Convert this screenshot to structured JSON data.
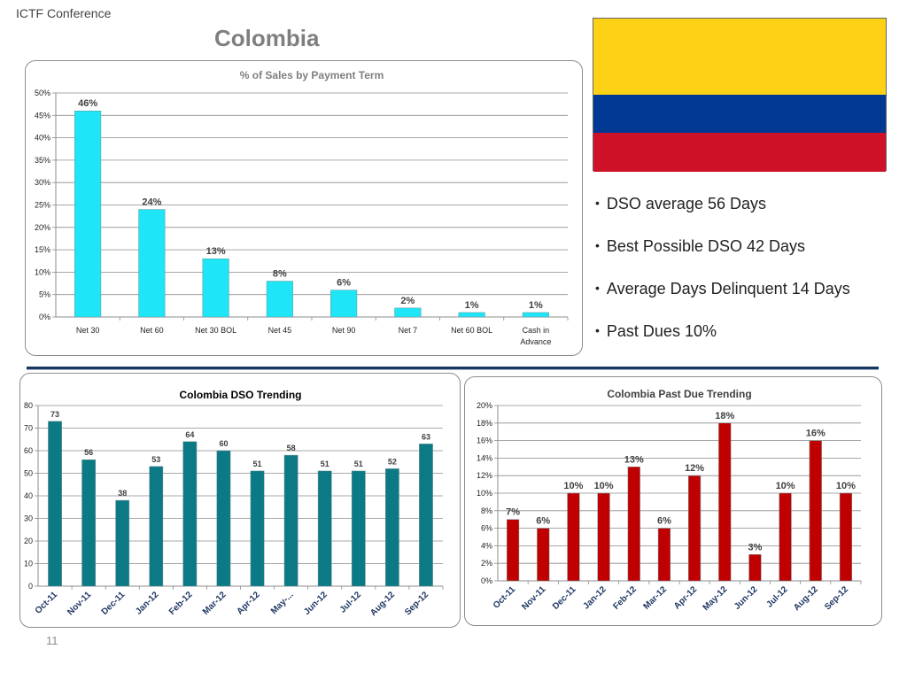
{
  "header": {
    "conference": "ICTF Conference",
    "title": "Colombia"
  },
  "flag": {
    "colors": [
      "#fcd116",
      "#003893",
      "#ce1126"
    ]
  },
  "bullets": [
    "DSO average 56 Days",
    "Best Possible DSO 42 Days",
    "Average Days Delinquent  14 Days",
    "Past Dues 10%"
  ],
  "page_number": "11",
  "chart_data": [
    {
      "type": "bar",
      "title": "% of Sales by Payment Term",
      "categories": [
        "Net 30",
        "Net 60",
        "Net 30 BOL",
        "Net 45",
        "Net 90",
        "Net 7",
        "Net 60 BOL",
        "Cash in Advance"
      ],
      "values": [
        46,
        24,
        13,
        8,
        6,
        2,
        1,
        1
      ],
      "data_labels": [
        "46%",
        "24%",
        "13%",
        "8%",
        "6%",
        "2%",
        "1%",
        "1%"
      ],
      "ylim": [
        0,
        50
      ],
      "yticks": [
        "0%",
        "5%",
        "10%",
        "15%",
        "20%",
        "25%",
        "30%",
        "35%",
        "40%",
        "45%",
        "50%"
      ],
      "grid": true,
      "color": "#1ee6f7"
    },
    {
      "type": "bar",
      "title": "Colombia  DSO Trending",
      "categories": [
        "Oct-11",
        "Nov-11",
        "Dec-11",
        "Jan-12",
        "Feb-12",
        "Mar-12",
        "Apr-12",
        "May-...",
        "Jun-12",
        "Jul-12",
        "Aug-12",
        "Sep-12"
      ],
      "values": [
        73,
        56,
        38,
        53,
        64,
        60,
        51,
        58,
        51,
        51,
        52,
        63
      ],
      "data_labels": [
        "73",
        "56",
        "38",
        "53",
        "64",
        "60",
        "51",
        "58",
        "51",
        "51",
        "52",
        "63"
      ],
      "ylim": [
        0,
        80
      ],
      "yticks": [
        "0",
        "10",
        "20",
        "30",
        "40",
        "50",
        "60",
        "70",
        "80"
      ],
      "grid": true,
      "color": "#0b7a85"
    },
    {
      "type": "bar",
      "title": "Colombia Past Due Trending",
      "categories": [
        "Oct-11",
        "Nov-11",
        "Dec-11",
        "Jan-12",
        "Feb-12",
        "Mar-12",
        "Apr-12",
        "May-12",
        "Jun-12",
        "Jul-12",
        "Aug-12",
        "Sep-12"
      ],
      "values": [
        7,
        6,
        10,
        10,
        13,
        6,
        12,
        18,
        3,
        10,
        16,
        10
      ],
      "data_labels": [
        "7%",
        "6%",
        "10%",
        "10%",
        "13%",
        "6%",
        "12%",
        "18%",
        "3%",
        "10%",
        "16%",
        "10%"
      ],
      "ylim": [
        0,
        20
      ],
      "yticks": [
        "0%",
        "2%",
        "4%",
        "6%",
        "8%",
        "10%",
        "12%",
        "14%",
        "16%",
        "18%",
        "20%"
      ],
      "grid": true,
      "color": "#c00000"
    }
  ]
}
